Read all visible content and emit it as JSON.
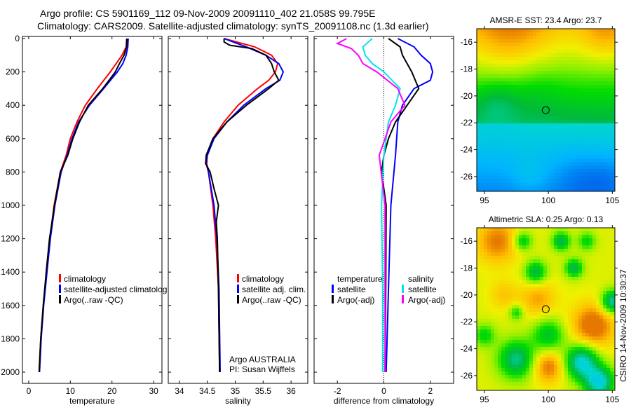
{
  "title": {
    "line1": "Argo profile: CS 5901169_112 09-Nov-2009 20091110_402 21.058S 99.795E",
    "line2": "Climatology: CARS2009. Satellite-adjusted climatology: synTS_20091108.nc (1.3d earlier)"
  },
  "stamp": "CSIRO 14-Nov-2009 10:30:37",
  "colors": {
    "climatology": "#ff0000",
    "satellite": "#0000ff",
    "argo": "#000000",
    "sal_satellite": "#00e5ee",
    "sal_argo": "#ff00ff"
  },
  "chart_data": [
    {
      "type": "line",
      "id": "temperature",
      "xlabel": "temperature",
      "ylabel": "",
      "xlim": [
        -1.5,
        32
      ],
      "ylim": [
        2000,
        0
      ],
      "xticks": [
        "0",
        "10",
        "20",
        "30"
      ],
      "xtick_values": [
        0,
        10,
        20,
        30
      ],
      "yticks": [
        "0",
        "200",
        "400",
        "600",
        "800",
        "1000",
        "1200",
        "1400",
        "1600",
        "1800",
        "2000"
      ],
      "ytick_values": [
        0,
        200,
        400,
        600,
        800,
        1000,
        1200,
        1400,
        1600,
        1800,
        2000
      ],
      "legend": [
        "climatology",
        "satellite-adjusted climatolog",
        "Argo(..raw -QC)"
      ],
      "series": [
        {
          "name": "climatology",
          "color": "#ff0000",
          "depth": [
            0,
            50,
            100,
            150,
            200,
            300,
            400,
            500,
            600,
            700,
            800,
            1000,
            1200,
            1400,
            1600,
            1800,
            2000
          ],
          "values": [
            23.5,
            23.4,
            22.4,
            21,
            19.6,
            16.5,
            13.6,
            11.6,
            10,
            9,
            7.6,
            6.1,
            5.1,
            4.3,
            3.5,
            2.9,
            2.5
          ]
        },
        {
          "name": "satellite-adjusted climatology",
          "color": "#0000ff",
          "depth": [
            0,
            50,
            100,
            150,
            200,
            300,
            400,
            500,
            600,
            700,
            800,
            1000,
            1200,
            1400,
            1600,
            1800,
            2000
          ],
          "values": [
            23.9,
            23.8,
            23.4,
            22.6,
            21.3,
            18,
            14.6,
            12,
            10.4,
            9.2,
            7.8,
            6.3,
            5.2,
            4.4,
            3.6,
            3,
            2.6
          ]
        },
        {
          "name": "Argo(..raw -QC)",
          "color": "#000000",
          "depth": [
            0,
            50,
            100,
            150,
            200,
            300,
            400,
            500,
            600,
            700,
            800,
            1000,
            1200,
            1400,
            1600,
            1800,
            2000
          ],
          "values": [
            23.6,
            23.5,
            22.9,
            21.8,
            20.8,
            17.8,
            14.3,
            12.2,
            10.6,
            9.4,
            7.6,
            6.2,
            5.0,
            4.2,
            3.5,
            2.9,
            2.5
          ]
        }
      ]
    },
    {
      "type": "line",
      "id": "salinity",
      "xlabel": "salinity",
      "xlim": [
        33.8,
        36.3
      ],
      "ylim": [
        2000,
        0
      ],
      "xticks": [
        "34",
        "34.5",
        "35",
        "35.5",
        "36"
      ],
      "xtick_values": [
        34,
        34.5,
        35,
        35.5,
        36
      ],
      "legend": [
        "climatology",
        "satellite adj. clim.",
        "Argo(..raw -QC)"
      ],
      "annotation": {
        "line1": "Argo AUSTRALIA",
        "line2": "PI: Susan Wijffels"
      },
      "series": [
        {
          "name": "climatology",
          "color": "#ff0000",
          "depth": [
            0,
            50,
            100,
            150,
            200,
            250,
            300,
            400,
            500,
            600,
            700,
            750,
            800,
            1000,
            1200,
            1500,
            2000
          ],
          "values": [
            34.8,
            35.35,
            35.65,
            35.76,
            35.72,
            35.6,
            35.4,
            35.05,
            34.8,
            34.6,
            34.5,
            34.49,
            34.52,
            34.6,
            34.65,
            34.7,
            34.72
          ]
        },
        {
          "name": "satellite adj. clim.",
          "color": "#0000ff",
          "depth": [
            0,
            50,
            100,
            150,
            200,
            250,
            300,
            400,
            500,
            600,
            700,
            750,
            800,
            1000,
            1200,
            1500,
            2000
          ],
          "values": [
            34.8,
            35.2,
            35.55,
            35.78,
            35.86,
            35.8,
            35.55,
            35.15,
            34.85,
            34.62,
            34.5,
            34.48,
            34.52,
            34.62,
            34.67,
            34.71,
            34.73
          ]
        },
        {
          "name": "Argo(..raw -QC)",
          "color": "#000000",
          "depth": [
            0,
            20,
            40,
            60,
            100,
            150,
            200,
            250,
            300,
            350,
            400,
            500,
            600,
            700,
            750,
            800,
            900,
            1000,
            1100,
            1200,
            1500,
            2000
          ],
          "values": [
            34.8,
            34.8,
            34.9,
            35.3,
            35.55,
            35.65,
            35.7,
            35.78,
            35.6,
            35.4,
            35.2,
            34.85,
            34.6,
            34.48,
            34.47,
            34.55,
            34.62,
            34.7,
            34.66,
            34.68,
            34.7,
            34.72
          ]
        }
      ]
    },
    {
      "type": "line",
      "id": "difference",
      "xlabel": "difference from climatology",
      "xlim": [
        -3,
        3
      ],
      "ylim": [
        2000,
        0
      ],
      "xticks": [
        "-2",
        "0",
        "2"
      ],
      "xtick_values": [
        -2,
        0,
        2
      ],
      "legend": {
        "temperature_header": "temperature",
        "salinity_header": "salinity",
        "t_sat": "satellite",
        "t_argo": "Argo(-adj)",
        "s_sat": "satellite",
        "s_argo": "Argo(-adj)"
      },
      "series": [
        {
          "name": "temperature satellite",
          "color": "#0000ff",
          "depth": [
            0,
            50,
            100,
            150,
            200,
            250,
            300,
            400,
            500,
            700,
            1000,
            1500,
            2000
          ],
          "values": [
            0.6,
            1.3,
            1.6,
            2.0,
            2.1,
            2.0,
            1.3,
            0.8,
            0.6,
            0.5,
            0.3,
            0.2,
            0.1
          ]
        },
        {
          "name": "temperature Argo(-adj)",
          "color": "#000000",
          "depth": [
            0,
            50,
            100,
            150,
            200,
            300,
            400,
            500,
            600,
            700,
            800,
            1000,
            1500,
            2000
          ],
          "values": [
            0.2,
            0.7,
            0.8,
            1.0,
            1.2,
            1.5,
            1.0,
            0.5,
            0.2,
            0,
            -0.1,
            0.1,
            0.08,
            0.05
          ]
        },
        {
          "name": "salinity satellite",
          "color": "#00e5ee",
          "depth": [
            0,
            50,
            100,
            150,
            200,
            300,
            400,
            500,
            700,
            1000,
            1500,
            2000
          ],
          "values": [
            -0.5,
            -0.9,
            -0.8,
            -0.5,
            0,
            0.7,
            0.5,
            0.2,
            0,
            -0.1,
            -0.05,
            -0.05
          ]
        },
        {
          "name": "salinity Argo(-adj)",
          "color": "#ff00ff",
          "depth": [
            0,
            30,
            60,
            100,
            150,
            200,
            300,
            400,
            500,
            700,
            1000,
            1500,
            2000
          ],
          "values": [
            -1.6,
            -2.0,
            -1.4,
            -1.1,
            -0.9,
            -0.3,
            0.6,
            0.9,
            0.3,
            -0.2,
            0.05,
            0.05,
            0.05
          ]
        }
      ]
    },
    {
      "type": "heatmap",
      "id": "sst-map",
      "title": "AMSR-E SST: 23.4 Argo: 23.7",
      "xlim": [
        94.4,
        105.2
      ],
      "ylim": [
        -27.1,
        -15.0
      ],
      "xticks": [
        "95",
        "100",
        "105"
      ],
      "xtick_values": [
        95,
        100,
        105
      ],
      "yticks": [
        "-16",
        "-18",
        "-20",
        "-22",
        "-24",
        "-26"
      ],
      "ytick_values": [
        -16,
        -18,
        -20,
        -22,
        -24,
        -26
      ],
      "marker": {
        "lon": 99.795,
        "lat": -21.058
      }
    },
    {
      "type": "heatmap",
      "id": "sla-map",
      "title": "Altimetric SLA: 0.25 Argo: 0.13",
      "xlim": [
        94.4,
        105.2
      ],
      "ylim": [
        -27.1,
        -15.0
      ],
      "xticks": [
        "95",
        "100",
        "105"
      ],
      "xtick_values": [
        95,
        100,
        105
      ],
      "yticks": [
        "-16",
        "-18",
        "-20",
        "-22",
        "-24",
        "-26"
      ],
      "ytick_values": [
        -16,
        -18,
        -20,
        -22,
        -24,
        -26
      ],
      "marker": {
        "lon": 99.795,
        "lat": -21.058
      }
    }
  ]
}
